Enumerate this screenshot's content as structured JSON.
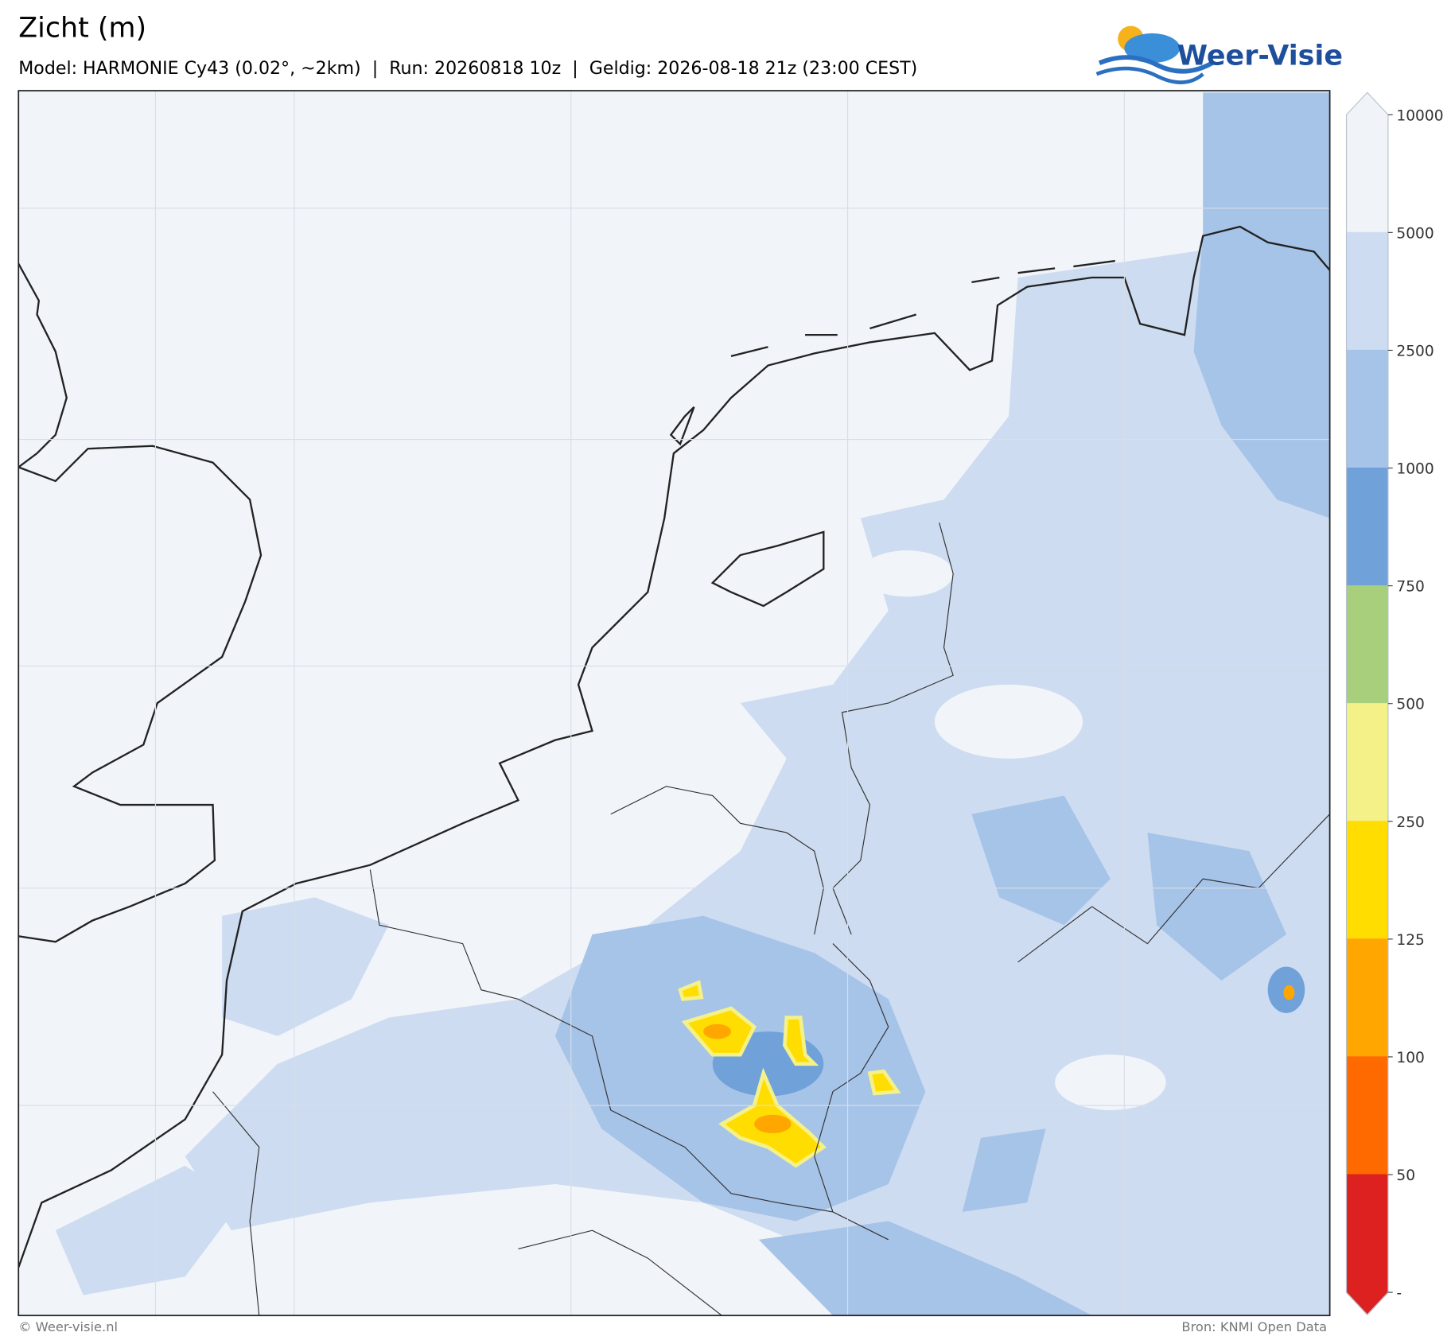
{
  "header": {
    "title": "Zicht (m)",
    "subtitle": "Model: HARMONIE Cy43 (0.02°, ~2km)  |  Run: 20260818 10z  |  Geldig: 2026-08-18 21z (23:00 CEST)",
    "logo": "Weer-Visie"
  },
  "legend": {
    "labels": [
      10000,
      5000,
      2500,
      1000,
      750,
      500,
      250,
      125,
      100,
      50,
      "-"
    ],
    "colors": [
      "#f0f4f9",
      "#cddcf0",
      "#a6c3e8",
      "#71a1d9",
      "#a8cf7c",
      "#f4f189",
      "#ffdd00",
      "#ffa600",
      "#ff6a00",
      "#dd2020"
    ]
  },
  "footer": {
    "left": "© Weer-visie.nl",
    "right": "Bron: KNMI Open Data"
  }
}
